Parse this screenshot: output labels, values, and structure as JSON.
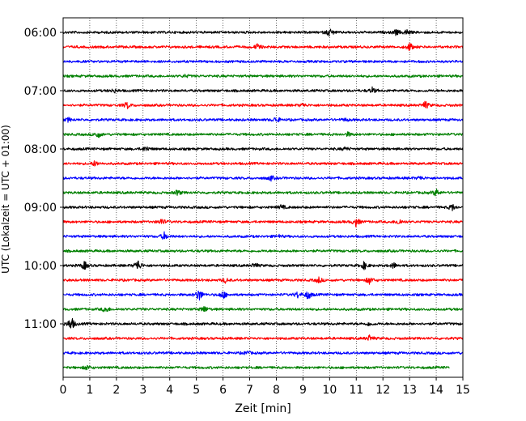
{
  "chart_data": {
    "type": "line",
    "title": "",
    "xlabel": "Zeit  [min]",
    "ylabel": "UTC (Lokalzeit = UTC + 01:00)",
    "xlim": [
      0,
      15
    ],
    "x_ticks": [
      "0",
      "1",
      "2",
      "3",
      "4",
      "5",
      "6",
      "7",
      "8",
      "9",
      "10",
      "11",
      "12",
      "13",
      "14",
      "15"
    ],
    "y_ticks": [
      "06:00",
      "07:00",
      "08:00",
      "09:00",
      "10:00",
      "11:00"
    ],
    "grid": "vertical dotted at each minute",
    "trace_interval_min": 15,
    "trace_colors": [
      "#000000",
      "#ff0000",
      "#0000ff",
      "#008000"
    ],
    "traces": [
      {
        "start": "06:00",
        "color": "#000000",
        "events": [
          {
            "t": 10.0,
            "amp": 0.9
          },
          {
            "t": 12.5,
            "amp": 0.6
          },
          {
            "t": 12.9,
            "amp": 0.6
          }
        ]
      },
      {
        "start": "06:15",
        "color": "#ff0000",
        "events": [
          {
            "t": 7.3,
            "amp": 0.6
          },
          {
            "t": 13.0,
            "amp": 0.9
          }
        ]
      },
      {
        "start": "06:30",
        "color": "#0000ff",
        "events": []
      },
      {
        "start": "06:45",
        "color": "#008000",
        "events": [
          {
            "t": 4.6,
            "amp": 0.3
          }
        ]
      },
      {
        "start": "07:00",
        "color": "#000000",
        "events": [
          {
            "t": 1.9,
            "amp": 0.4
          },
          {
            "t": 11.6,
            "amp": 0.6
          }
        ]
      },
      {
        "start": "07:15",
        "color": "#ff0000",
        "events": [
          {
            "t": 2.4,
            "amp": 0.7
          },
          {
            "t": 9.0,
            "amp": 0.4
          },
          {
            "t": 13.6,
            "amp": 0.8
          }
        ]
      },
      {
        "start": "07:30",
        "color": "#0000ff",
        "events": [
          {
            "t": 0.2,
            "amp": 0.4
          },
          {
            "t": 8.0,
            "amp": 0.7
          },
          {
            "t": 10.6,
            "amp": 0.3
          }
        ]
      },
      {
        "start": "07:45",
        "color": "#008000",
        "events": [
          {
            "t": 1.3,
            "amp": 0.8
          },
          {
            "t": 10.7,
            "amp": 0.4
          }
        ]
      },
      {
        "start": "08:00",
        "color": "#000000",
        "events": [
          {
            "t": 3.1,
            "amp": 0.6
          },
          {
            "t": 10.6,
            "amp": 0.4
          }
        ]
      },
      {
        "start": "08:15",
        "color": "#ff0000",
        "events": [
          {
            "t": 1.2,
            "amp": 0.6
          }
        ]
      },
      {
        "start": "08:30",
        "color": "#0000ff",
        "events": [
          {
            "t": 7.8,
            "amp": 0.5
          },
          {
            "t": 13.4,
            "amp": 0.4
          }
        ]
      },
      {
        "start": "08:45",
        "color": "#008000",
        "events": [
          {
            "t": 4.3,
            "amp": 0.6
          },
          {
            "t": 14.0,
            "amp": 0.8
          }
        ]
      },
      {
        "start": "09:00",
        "color": "#000000",
        "events": [
          {
            "t": 8.2,
            "amp": 0.5
          },
          {
            "t": 14.6,
            "amp": 0.7
          }
        ]
      },
      {
        "start": "09:15",
        "color": "#ff0000",
        "events": [
          {
            "t": 3.7,
            "amp": 0.7
          },
          {
            "t": 11.0,
            "amp": 1.0
          },
          {
            "t": 12.6,
            "amp": 0.7
          }
        ]
      },
      {
        "start": "09:30",
        "color": "#0000ff",
        "events": [
          {
            "t": 3.8,
            "amp": 0.8
          },
          {
            "t": 8.1,
            "amp": 0.3
          }
        ]
      },
      {
        "start": "09:45",
        "color": "#008000",
        "events": []
      },
      {
        "start": "10:00",
        "color": "#000000",
        "events": [
          {
            "t": 0.8,
            "amp": 0.9
          },
          {
            "t": 2.8,
            "amp": 1.3
          },
          {
            "t": 7.2,
            "amp": 0.5
          },
          {
            "t": 11.3,
            "amp": 0.8
          },
          {
            "t": 12.4,
            "amp": 0.6
          }
        ]
      },
      {
        "start": "10:15",
        "color": "#ff0000",
        "events": [
          {
            "t": 6.1,
            "amp": 0.5
          },
          {
            "t": 9.6,
            "amp": 0.6
          },
          {
            "t": 11.5,
            "amp": 0.8
          }
        ]
      },
      {
        "start": "10:30",
        "color": "#0000ff",
        "events": [
          {
            "t": 5.1,
            "amp": 1.4
          },
          {
            "t": 6.0,
            "amp": 0.9
          },
          {
            "t": 8.8,
            "amp": 0.6
          },
          {
            "t": 9.2,
            "amp": 1.0
          }
        ]
      },
      {
        "start": "10:45",
        "color": "#008000",
        "events": [
          {
            "t": 1.6,
            "amp": 0.7
          },
          {
            "t": 5.3,
            "amp": 0.7
          }
        ]
      },
      {
        "start": "11:00",
        "color": "#000000",
        "events": [
          {
            "t": 0.3,
            "amp": 1.6
          },
          {
            "t": 11.5,
            "amp": 0.4
          }
        ]
      },
      {
        "start": "11:15",
        "color": "#ff0000",
        "events": [
          {
            "t": 11.5,
            "amp": 0.6
          }
        ]
      },
      {
        "start": "11:30",
        "color": "#0000ff",
        "events": [
          {
            "t": 6.9,
            "amp": 0.4
          }
        ]
      },
      {
        "start": "11:45",
        "color": "#008000",
        "events": [
          {
            "t": 0.9,
            "amp": 0.5
          }
        ],
        "end": 14.5
      }
    ]
  }
}
